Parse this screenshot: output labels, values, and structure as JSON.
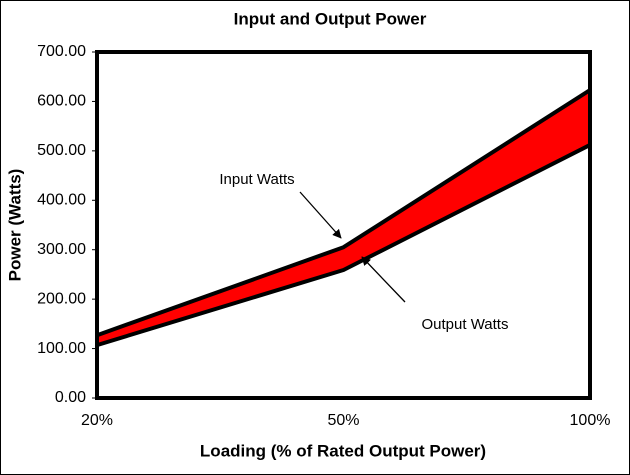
{
  "chart_data": {
    "type": "line",
    "title": "Input and Output Power",
    "x_label": "Loading (% of Rated Output Power)",
    "y_label": "Power (Watts)",
    "categories": [
      "20%",
      "50%",
      "100%"
    ],
    "series": [
      {
        "name": "Input Watts",
        "color": "#000000",
        "values": [
          127,
          305,
          623
        ]
      },
      {
        "name": "Output Watts",
        "color": "#000000",
        "values": [
          107,
          259,
          512
        ]
      }
    ],
    "fill_between_color": "#ff0000",
    "ylim": [
      0,
      700
    ],
    "yticks": [
      {
        "value": 0,
        "label": "0.00"
      },
      {
        "value": 100,
        "label": "100.00"
      },
      {
        "value": 200,
        "label": "200.00"
      },
      {
        "value": 300,
        "label": "300.00"
      },
      {
        "value": 400,
        "label": "400.00"
      },
      {
        "value": 500,
        "label": "500.00"
      },
      {
        "value": 600,
        "label": "600.00"
      },
      {
        "value": 700,
        "label": "700.00"
      }
    ],
    "grid": false
  }
}
